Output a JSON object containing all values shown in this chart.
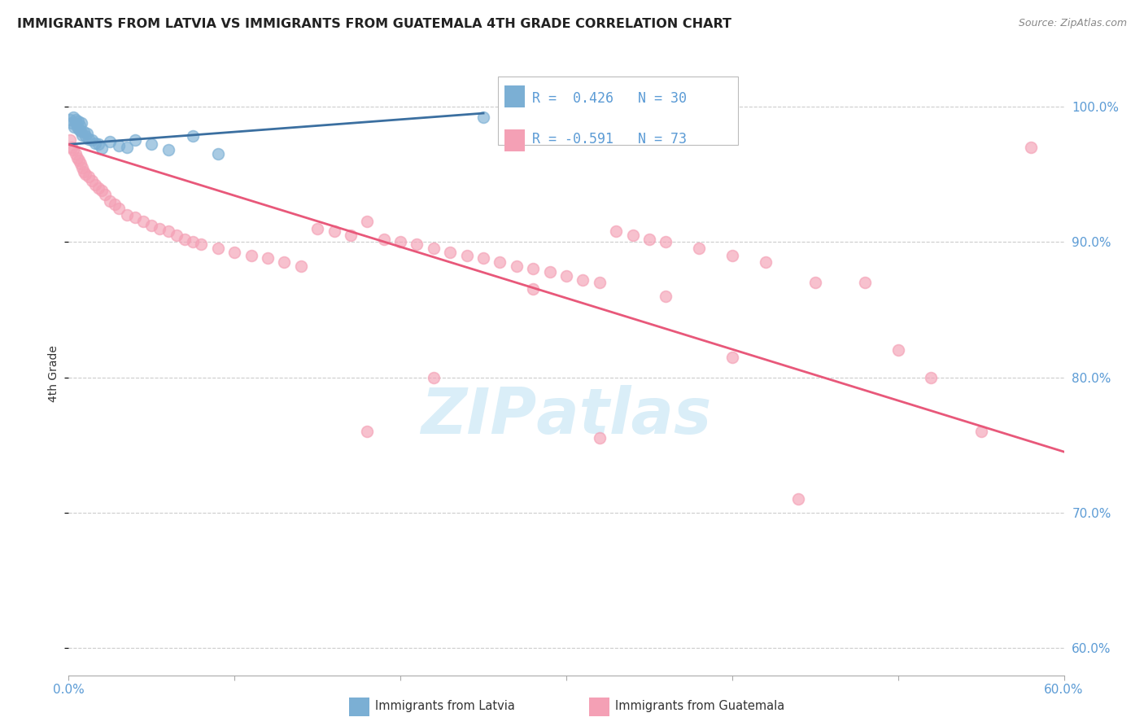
{
  "title": "IMMIGRANTS FROM LATVIA VS IMMIGRANTS FROM GUATEMALA 4TH GRADE CORRELATION CHART",
  "source": "Source: ZipAtlas.com",
  "ylabel": "4th Grade",
  "color_latvia": "#7bafd4",
  "color_guatemala": "#f4a0b5",
  "color_line_latvia": "#3b6fa0",
  "color_line_guatemala": "#e8587a",
  "color_axis_ticks": "#5b9bd5",
  "watermark_color": "#daeef8",
  "xlim": [
    0.0,
    60.0
  ],
  "ylim": [
    58.0,
    102.5
  ],
  "yticks": [
    60.0,
    70.0,
    80.0,
    90.0,
    100.0
  ],
  "xticks": [
    0.0,
    10.0,
    20.0,
    30.0,
    40.0,
    50.0,
    60.0
  ],
  "latvia_trendline_x": [
    0.0,
    25.0
  ],
  "latvia_trendline_y": [
    97.2,
    99.5
  ],
  "guatemala_trendline_x": [
    0.0,
    60.0
  ],
  "guatemala_trendline_y": [
    97.2,
    74.5
  ],
  "latvia_scatter_x": [
    0.1,
    0.2,
    0.3,
    0.35,
    0.4,
    0.45,
    0.5,
    0.55,
    0.6,
    0.65,
    0.7,
    0.75,
    0.8,
    0.9,
    1.0,
    1.1,
    1.2,
    1.4,
    1.6,
    1.8,
    2.0,
    2.5,
    3.0,
    3.5,
    4.0,
    5.0,
    6.0,
    7.5,
    9.0,
    25.0
  ],
  "latvia_scatter_y": [
    99.0,
    98.8,
    99.2,
    98.5,
    99.0,
    98.7,
    98.5,
    98.9,
    98.3,
    98.6,
    98.2,
    98.8,
    97.9,
    98.1,
    97.8,
    98.0,
    97.6,
    97.5,
    97.3,
    97.2,
    96.9,
    97.4,
    97.1,
    97.0,
    97.5,
    97.2,
    96.8,
    97.8,
    96.5,
    99.2
  ],
  "guatemala_scatter_x": [
    0.1,
    0.2,
    0.3,
    0.4,
    0.5,
    0.6,
    0.7,
    0.8,
    0.9,
    1.0,
    1.2,
    1.4,
    1.6,
    1.8,
    2.0,
    2.2,
    2.5,
    2.8,
    3.0,
    3.5,
    4.0,
    4.5,
    5.0,
    5.5,
    6.0,
    6.5,
    7.0,
    7.5,
    8.0,
    9.0,
    10.0,
    11.0,
    12.0,
    13.0,
    14.0,
    15.0,
    16.0,
    17.0,
    18.0,
    19.0,
    20.0,
    21.0,
    22.0,
    23.0,
    24.0,
    25.0,
    26.0,
    27.0,
    28.0,
    29.0,
    30.0,
    31.0,
    32.0,
    33.0,
    34.0,
    35.0,
    36.0,
    38.0,
    40.0,
    42.0,
    45.0,
    48.0,
    50.0,
    52.0,
    55.0,
    58.0,
    28.0,
    36.0,
    22.0,
    18.0,
    40.0,
    32.0,
    44.0
  ],
  "guatemala_scatter_y": [
    97.5,
    97.0,
    96.8,
    96.5,
    96.2,
    96.0,
    95.8,
    95.5,
    95.2,
    95.0,
    94.8,
    94.5,
    94.2,
    94.0,
    93.8,
    93.5,
    93.0,
    92.8,
    92.5,
    92.0,
    91.8,
    91.5,
    91.2,
    91.0,
    90.8,
    90.5,
    90.2,
    90.0,
    89.8,
    89.5,
    89.2,
    89.0,
    88.8,
    88.5,
    88.2,
    91.0,
    90.8,
    90.5,
    91.5,
    90.2,
    90.0,
    89.8,
    89.5,
    89.2,
    89.0,
    88.8,
    88.5,
    88.2,
    88.0,
    87.8,
    87.5,
    87.2,
    87.0,
    90.8,
    90.5,
    90.2,
    90.0,
    89.5,
    89.0,
    88.5,
    87.0,
    87.0,
    82.0,
    80.0,
    76.0,
    97.0,
    86.5,
    86.0,
    80.0,
    76.0,
    81.5,
    75.5,
    71.0
  ],
  "legend_r1_label": "R =  0.426",
  "legend_r1_n": "N = 30",
  "legend_r2_label": "R = -0.591",
  "legend_r2_n": "N = 73"
}
